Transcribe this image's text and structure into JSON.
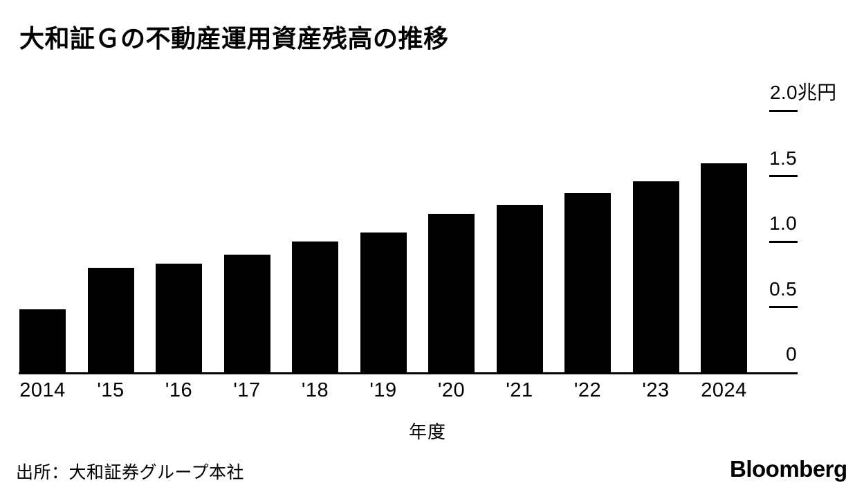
{
  "title": "大和証Ｇの不動産運用資産残高の推移",
  "chart_data": {
    "type": "bar",
    "title": "大和証Ｇの不動産運用資産残高の推移",
    "categories": [
      "2014",
      "'15",
      "'16",
      "'17",
      "'18",
      "'19",
      "'20",
      "'21",
      "'22",
      "'23",
      "2024"
    ],
    "values": [
      0.48,
      0.8,
      0.83,
      0.9,
      1.0,
      1.07,
      1.21,
      1.28,
      1.37,
      1.46,
      1.6
    ],
    "xlabel": "年度",
    "unit": "兆円",
    "yticks": [
      0,
      0.5,
      1.0,
      1.5,
      2.0
    ],
    "ytick_labels": [
      "0",
      "0.5",
      "1.0",
      "1.5",
      "2.0"
    ],
    "ylim": [
      0,
      2.0
    ],
    "bar_color": "#000000",
    "background_color": "#ffffff",
    "grid": false,
    "legend": false,
    "axis_side": "right"
  },
  "source": "出所：大和証券グループ本社",
  "branding": "Bloomberg"
}
